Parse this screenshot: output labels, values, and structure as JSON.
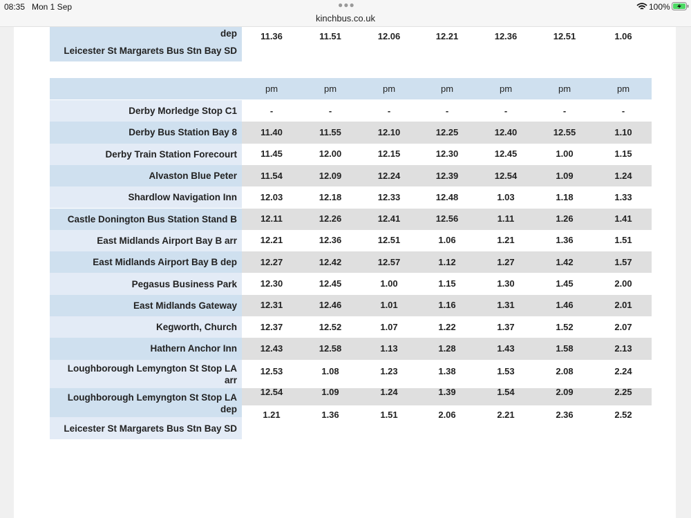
{
  "status_bar": {
    "time": "08:35",
    "date": "Mon 1 Sep",
    "url": "kinchbus.co.uk",
    "battery": "100%"
  },
  "top_table": {
    "rows": [
      {
        "stop": "dep",
        "times": [
          "11.36",
          "11.51",
          "12.06",
          "12.21",
          "12.36",
          "12.51",
          "1.06"
        ]
      },
      {
        "stop": "Leicester St Margarets Bus Stn Bay SD",
        "times": []
      }
    ]
  },
  "main_table": {
    "header": [
      "pm",
      "pm",
      "pm",
      "pm",
      "pm",
      "pm",
      "pm"
    ],
    "rows": [
      {
        "stop": "Derby Morledge Stop C1",
        "times": [
          "-",
          "-",
          "-",
          "-",
          "-",
          "-",
          "-"
        ]
      },
      {
        "stop": "Derby Bus Station Bay 8",
        "times": [
          "11.40",
          "11.55",
          "12.10",
          "12.25",
          "12.40",
          "12.55",
          "1.10"
        ]
      },
      {
        "stop": "Derby Train Station Forecourt",
        "times": [
          "11.45",
          "12.00",
          "12.15",
          "12.30",
          "12.45",
          "1.00",
          "1.15"
        ]
      },
      {
        "stop": "Alvaston Blue Peter",
        "times": [
          "11.54",
          "12.09",
          "12.24",
          "12.39",
          "12.54",
          "1.09",
          "1.24"
        ]
      },
      {
        "stop": "Shardlow Navigation Inn",
        "times": [
          "12.03",
          "12.18",
          "12.33",
          "12.48",
          "1.03",
          "1.18",
          "1.33"
        ]
      },
      {
        "stop": "Castle Donington Bus Station Stand B",
        "times": [
          "12.11",
          "12.26",
          "12.41",
          "12.56",
          "1.11",
          "1.26",
          "1.41"
        ]
      },
      {
        "stop": "East Midlands Airport Bay B arr",
        "times": [
          "12.21",
          "12.36",
          "12.51",
          "1.06",
          "1.21",
          "1.36",
          "1.51"
        ]
      },
      {
        "stop": "East Midlands Airport Bay B dep",
        "times": [
          "12.27",
          "12.42",
          "12.57",
          "1.12",
          "1.27",
          "1.42",
          "1.57"
        ]
      },
      {
        "stop": "Pegasus Business Park",
        "times": [
          "12.30",
          "12.45",
          "1.00",
          "1.15",
          "1.30",
          "1.45",
          "2.00"
        ]
      },
      {
        "stop": "East Midlands Gateway",
        "times": [
          "12.31",
          "12.46",
          "1.01",
          "1.16",
          "1.31",
          "1.46",
          "2.01"
        ]
      },
      {
        "stop": "Kegworth, Church",
        "times": [
          "12.37",
          "12.52",
          "1.07",
          "1.22",
          "1.37",
          "1.52",
          "2.07"
        ]
      },
      {
        "stop": "Hathern Anchor Inn",
        "times": [
          "12.43",
          "12.58",
          "1.13",
          "1.28",
          "1.43",
          "1.58",
          "2.13"
        ]
      },
      {
        "stop": "Loughborough Lemyngton St Stop LA arr",
        "times": [
          "12.53",
          "1.08",
          "1.23",
          "1.38",
          "1.53",
          "2.08",
          "2.24"
        ]
      },
      {
        "stop": "Loughborough Lemyngton St Stop LA dep",
        "times": [
          "12.54",
          "1.09",
          "1.24",
          "1.39",
          "1.54",
          "2.09",
          "2.25"
        ]
      },
      {
        "stop": "Leicester St Margarets Bus Stn Bay SD",
        "times": [
          "1.21",
          "1.36",
          "1.51",
          "2.06",
          "2.21",
          "2.36",
          "2.52"
        ]
      }
    ]
  }
}
